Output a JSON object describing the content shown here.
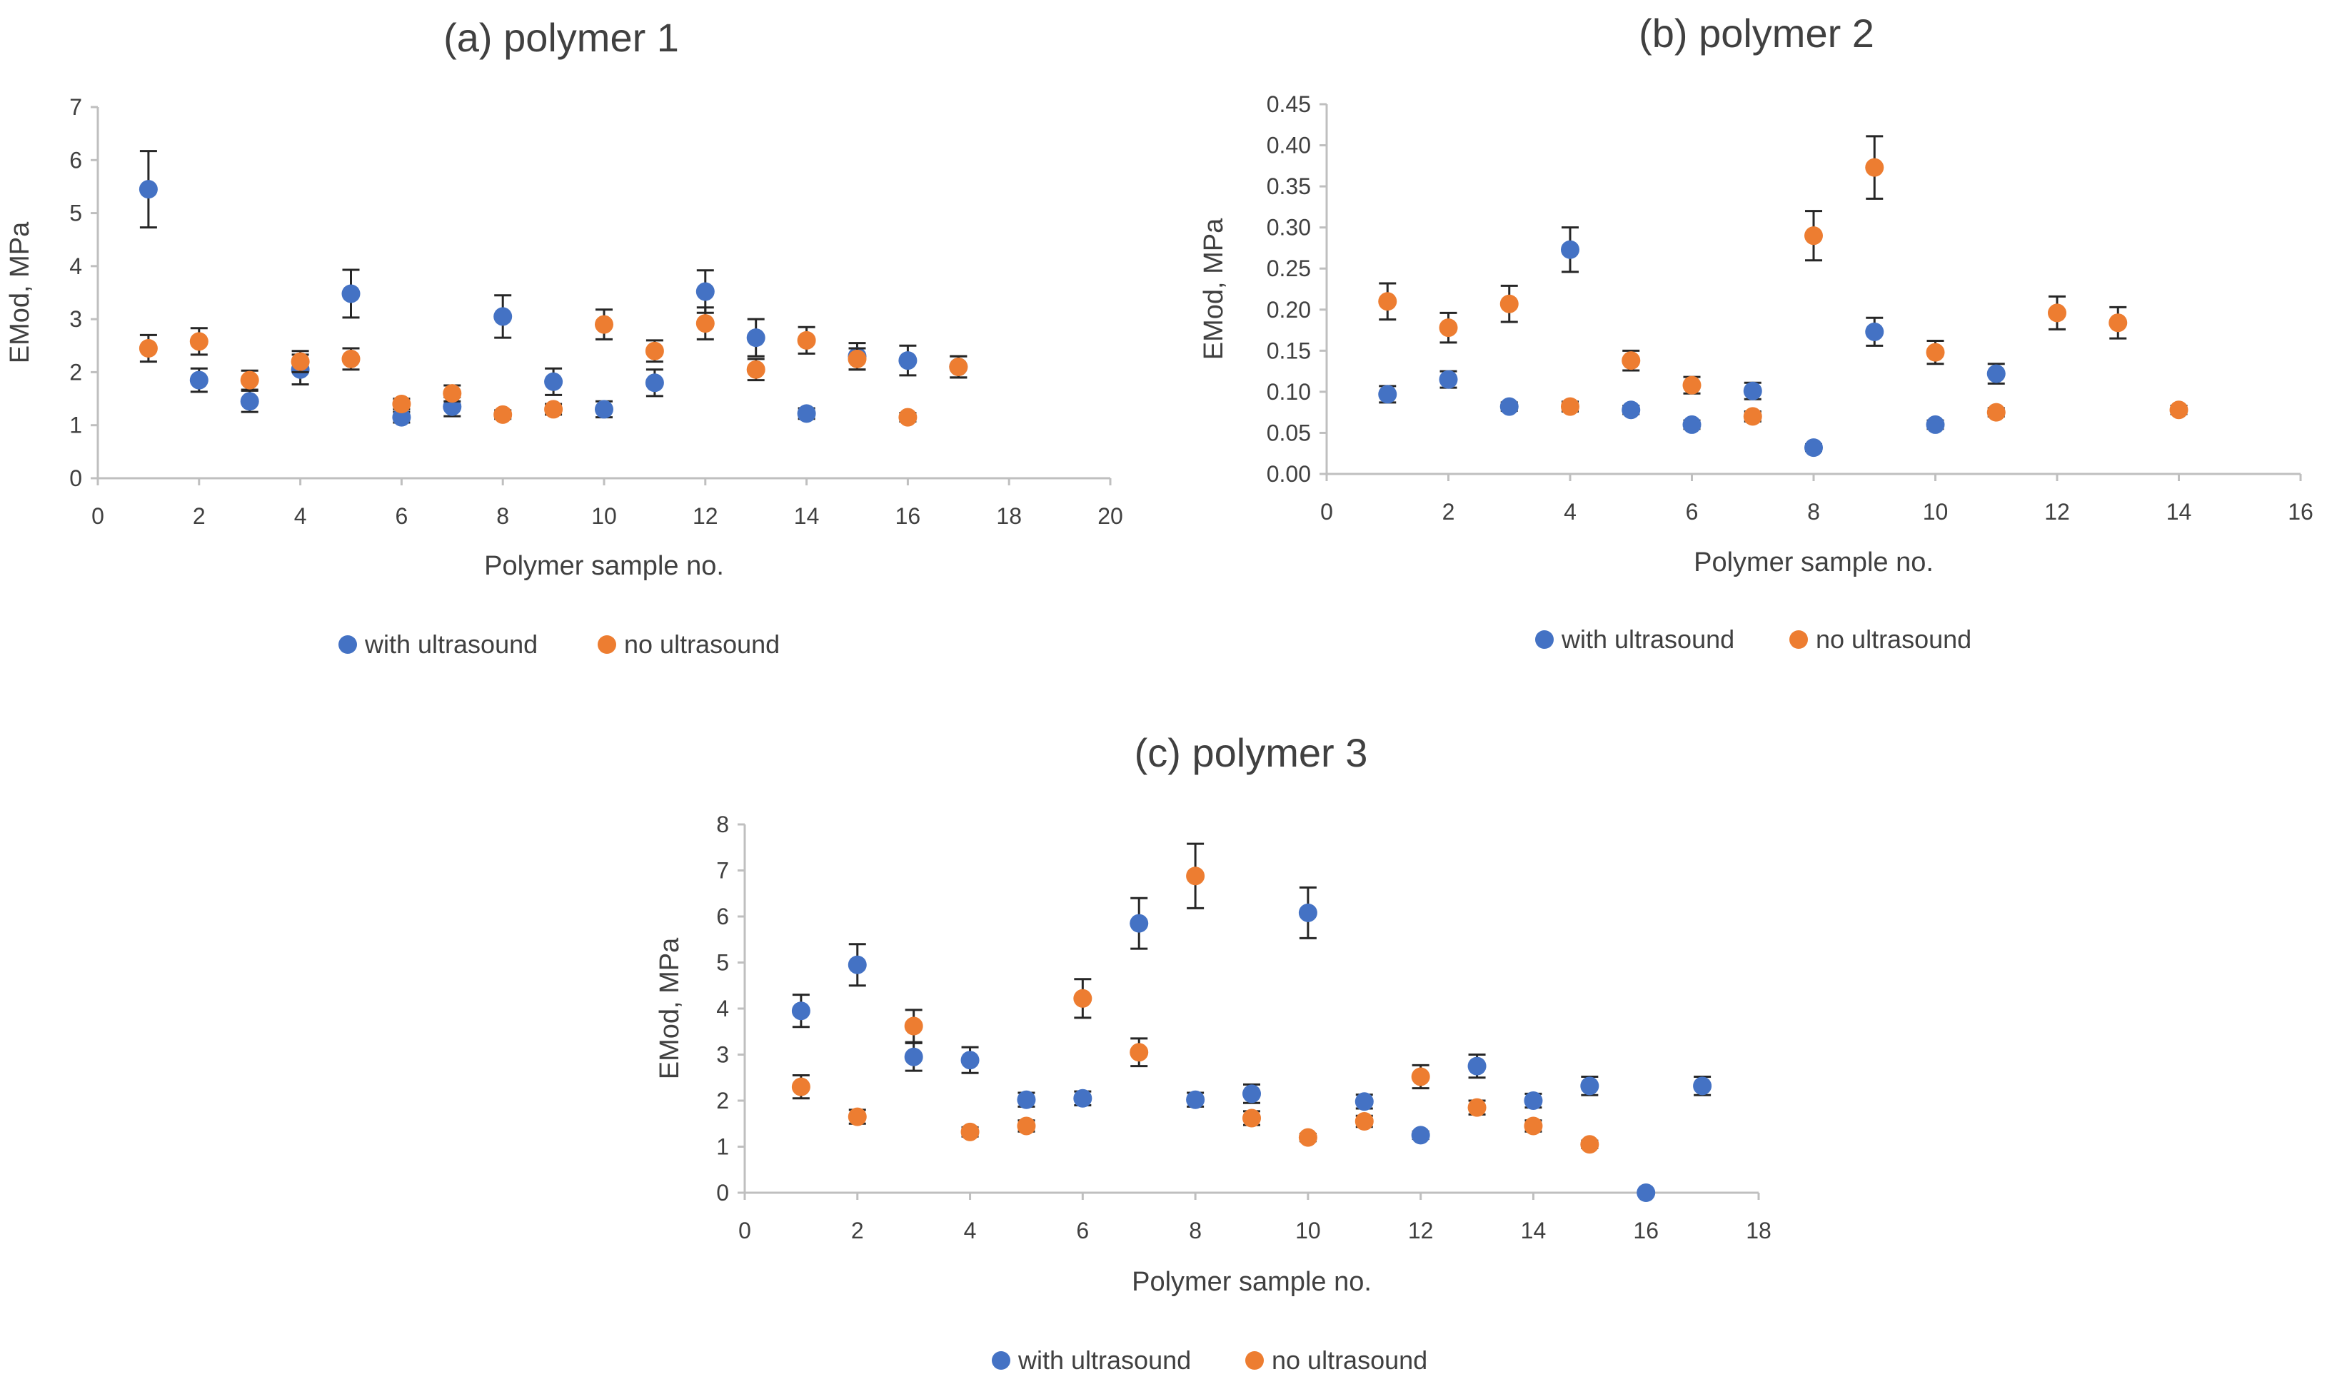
{
  "colors": {
    "with_ultrasound": "#4472C4",
    "no_ultrasound": "#ED7D31",
    "axis": "#BFBFBF",
    "errbar": "#262626",
    "text": "#404040"
  },
  "chart_data": [
    {
      "id": "a",
      "type": "scatter",
      "title": "(a) polymer 1",
      "xlabel": "Polymer sample no.",
      "ylabel": "EMod, MPa",
      "xlim": [
        0,
        20
      ],
      "ylim": [
        0,
        7
      ],
      "xticks": [
        "0",
        "2",
        "4",
        "6",
        "8",
        "10",
        "12",
        "14",
        "16",
        "18",
        "20"
      ],
      "yticks": [
        "0",
        "1",
        "2",
        "3",
        "4",
        "5",
        "6",
        "7"
      ],
      "error_bars": true,
      "legend": "bottom",
      "series": [
        {
          "name": "with ultrasound",
          "color": "#4472C4",
          "points": [
            [
              1,
              5.45,
              0.72
            ],
            [
              2,
              1.85,
              0.22
            ],
            [
              3,
              1.45,
              0.2
            ],
            [
              4,
              2.05,
              0.28
            ],
            [
              5,
              3.48,
              0.45
            ],
            [
              6,
              1.15,
              0.1
            ],
            [
              7,
              1.35,
              0.18
            ],
            [
              8,
              3.05,
              0.4
            ],
            [
              9,
              1.82,
              0.25
            ],
            [
              10,
              1.3,
              0.15
            ],
            [
              11,
              1.8,
              0.25
            ],
            [
              12,
              3.52,
              0.4
            ],
            [
              13,
              2.65,
              0.35
            ],
            [
              14,
              1.22,
              0.1
            ],
            [
              15,
              2.3,
              0.25
            ],
            [
              16,
              2.22,
              0.28
            ],
            [
              17,
              2.1,
              0.2
            ]
          ]
        },
        {
          "name": "no ultrasound",
          "color": "#ED7D31",
          "points": [
            [
              1,
              2.45,
              0.25
            ],
            [
              2,
              2.58,
              0.25
            ],
            [
              3,
              1.85,
              0.18
            ],
            [
              4,
              2.2,
              0.2
            ],
            [
              5,
              2.25,
              0.2
            ],
            [
              6,
              1.4,
              0.1
            ],
            [
              7,
              1.6,
              0.15
            ],
            [
              8,
              1.2,
              0.08
            ],
            [
              9,
              1.3,
              0.1
            ],
            [
              10,
              2.9,
              0.28
            ],
            [
              11,
              2.4,
              0.2
            ],
            [
              12,
              2.92,
              0.3
            ],
            [
              13,
              2.05,
              0.2
            ],
            [
              14,
              2.6,
              0.25
            ],
            [
              15,
              2.25,
              0.2
            ],
            [
              16,
              1.15,
              0.08
            ],
            [
              17,
              2.1,
              0.2
            ]
          ]
        }
      ]
    },
    {
      "id": "b",
      "type": "scatter",
      "title": "(b) polymer 2",
      "xlabel": "Polymer sample no.",
      "ylabel": "EMod, MPa",
      "xlim": [
        0,
        16
      ],
      "ylim": [
        0,
        0.45
      ],
      "xticks": [
        "0",
        "2",
        "4",
        "6",
        "8",
        "10",
        "12",
        "14",
        "16"
      ],
      "yticks": [
        "0.00",
        "0.05",
        "0.10",
        "0.15",
        "0.20",
        "0.25",
        "0.30",
        "0.35",
        "0.40",
        "0.45"
      ],
      "error_bars": true,
      "legend": "bottom",
      "series": [
        {
          "name": "with ultrasound",
          "color": "#4472C4",
          "points": [
            [
              1,
              0.097,
              0.01
            ],
            [
              2,
              0.115,
              0.01
            ],
            [
              3,
              0.082,
              0.005
            ],
            [
              4,
              0.273,
              0.027
            ],
            [
              5,
              0.078,
              0.005
            ],
            [
              6,
              0.06,
              0.005
            ],
            [
              7,
              0.101,
              0.01
            ],
            [
              8,
              0.032,
              0.004
            ],
            [
              9,
              0.173,
              0.017
            ],
            [
              10,
              0.06,
              0.005
            ],
            [
              11,
              0.122,
              0.012
            ]
          ]
        },
        {
          "name": "no ultrasound",
          "color": "#ED7D31",
          "points": [
            [
              1,
              0.21,
              0.022
            ],
            [
              2,
              0.178,
              0.018
            ],
            [
              3,
              0.207,
              0.022
            ],
            [
              4,
              0.082,
              0.006
            ],
            [
              5,
              0.138,
              0.012
            ],
            [
              6,
              0.108,
              0.01
            ],
            [
              7,
              0.07,
              0.006
            ],
            [
              8,
              0.29,
              0.03
            ],
            [
              9,
              0.373,
              0.038
            ],
            [
              10,
              0.148,
              0.014
            ],
            [
              11,
              0.075,
              0.005
            ],
            [
              12,
              0.196,
              0.02
            ],
            [
              13,
              0.184,
              0.019
            ],
            [
              14,
              0.078,
              0.005
            ]
          ]
        }
      ]
    },
    {
      "id": "c",
      "type": "scatter",
      "title": "(c) polymer 3",
      "xlabel": "Polymer sample no.",
      "ylabel": "EMod, MPa",
      "xlim": [
        0,
        18
      ],
      "ylim": [
        0,
        8
      ],
      "xticks": [
        "0",
        "2",
        "4",
        "6",
        "8",
        "10",
        "12",
        "14",
        "16",
        "18"
      ],
      "yticks": [
        "0",
        "1",
        "2",
        "3",
        "4",
        "5",
        "6",
        "7",
        "8"
      ],
      "error_bars": true,
      "legend": "bottom",
      "series": [
        {
          "name": "with ultrasound",
          "color": "#4472C4",
          "points": [
            [
              1,
              3.95,
              0.35
            ],
            [
              2,
              4.95,
              0.45
            ],
            [
              3,
              2.95,
              0.3
            ],
            [
              4,
              2.88,
              0.28
            ],
            [
              5,
              2.02,
              0.15
            ],
            [
              6,
              2.05,
              0.15
            ],
            [
              7,
              5.85,
              0.55
            ],
            [
              8,
              2.02,
              0.15
            ],
            [
              9,
              2.15,
              0.2
            ],
            [
              10,
              6.08,
              0.55
            ],
            [
              11,
              1.98,
              0.15
            ],
            [
              12,
              1.25,
              0.08
            ],
            [
              13,
              2.75,
              0.25
            ],
            [
              14,
              2.0,
              0.15
            ],
            [
              15,
              2.32,
              0.2
            ],
            [
              16,
              0.0,
              0.0
            ],
            [
              17,
              2.32,
              0.2
            ]
          ]
        },
        {
          "name": "no ultrasound",
          "color": "#ED7D31",
          "points": [
            [
              1,
              2.3,
              0.25
            ],
            [
              2,
              1.65,
              0.15
            ],
            [
              3,
              3.62,
              0.35
            ],
            [
              4,
              1.32,
              0.1
            ],
            [
              5,
              1.45,
              0.12
            ],
            [
              6,
              4.22,
              0.42
            ],
            [
              7,
              3.05,
              0.3
            ],
            [
              8,
              6.88,
              0.7
            ],
            [
              9,
              1.62,
              0.15
            ],
            [
              10,
              1.2,
              0.08
            ],
            [
              11,
              1.55,
              0.12
            ],
            [
              12,
              2.52,
              0.25
            ],
            [
              13,
              1.85,
              0.15
            ],
            [
              14,
              1.45,
              0.12
            ],
            [
              15,
              1.05,
              0.08
            ]
          ]
        }
      ]
    }
  ]
}
